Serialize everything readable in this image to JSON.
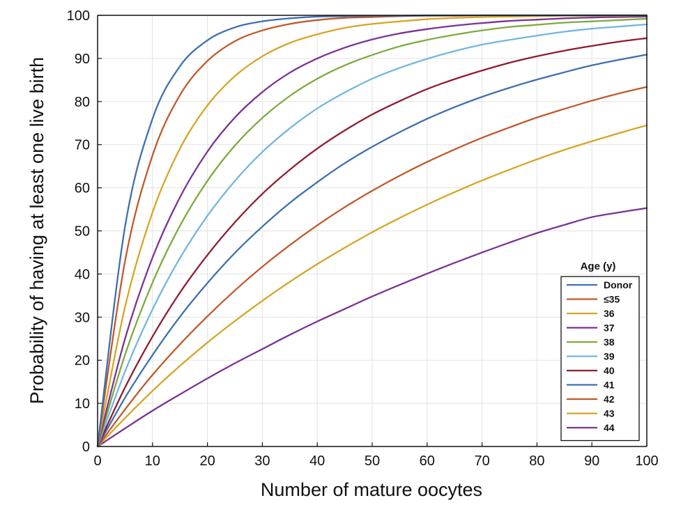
{
  "chart_data": {
    "type": "line",
    "title": "",
    "xlabel": "Number of mature oocytes",
    "ylabel": "Probability of having at least one live birth",
    "xlim": [
      0,
      100
    ],
    "ylim": [
      0,
      100
    ],
    "xticks": [
      0,
      10,
      20,
      30,
      40,
      50,
      60,
      70,
      80,
      90,
      100
    ],
    "yticks": [
      0,
      10,
      20,
      30,
      40,
      50,
      60,
      70,
      80,
      90,
      100
    ],
    "grid": true,
    "legend": {
      "title": "Age (y)",
      "placement": "bottom-right"
    },
    "x": [
      0,
      5,
      10,
      15,
      20,
      25,
      30,
      35,
      40,
      45,
      50,
      55,
      60,
      65,
      70,
      75,
      80,
      85,
      90,
      95,
      100
    ],
    "series": [
      {
        "name": "Donor",
        "color": "#3d6fb0",
        "values": [
          0,
          51.0,
          76.0,
          88.2,
          94.2,
          97.2,
          98.6,
          99.3,
          99.7,
          99.8,
          99.9,
          99.9,
          100,
          100,
          100,
          100,
          100,
          100,
          100,
          100,
          100
        ]
      },
      {
        "name": "≤35",
        "color": "#c1592a",
        "values": [
          0,
          43.0,
          67.5,
          81.5,
          89.4,
          94.0,
          96.5,
          98.0,
          98.9,
          99.4,
          99.6,
          99.8,
          99.9,
          99.9,
          100,
          100,
          100,
          100,
          100,
          100,
          100
        ]
      },
      {
        "name": "36",
        "color": "#d6a526",
        "values": [
          0,
          32.4,
          54.3,
          69.1,
          79.1,
          85.9,
          90.5,
          93.6,
          95.6,
          97.1,
          98.0,
          98.6,
          99.1,
          99.4,
          99.6,
          99.7,
          99.8,
          99.9,
          99.9,
          99.9,
          100
        ]
      },
      {
        "name": "37",
        "color": "#7b3294",
        "values": [
          0,
          25.0,
          43.8,
          57.8,
          68.4,
          76.3,
          82.2,
          86.7,
          90.0,
          92.5,
          94.4,
          95.8,
          96.8,
          97.6,
          98.2,
          98.7,
          99.0,
          99.3,
          99.5,
          99.6,
          99.7
        ]
      },
      {
        "name": "38",
        "color": "#7daa3d",
        "values": [
          0,
          21.3,
          38.0,
          51.2,
          61.6,
          69.8,
          76.2,
          81.3,
          85.3,
          88.4,
          90.8,
          92.8,
          94.3,
          95.5,
          96.5,
          97.3,
          97.8,
          98.3,
          98.6,
          98.9,
          99.2
        ]
      },
      {
        "name": "39",
        "color": "#72b6e0",
        "values": [
          0,
          17.4,
          31.8,
          43.7,
          53.5,
          61.6,
          68.3,
          73.8,
          78.4,
          82.1,
          85.3,
          87.8,
          89.9,
          91.7,
          93.2,
          94.3,
          95.3,
          96.2,
          96.9,
          97.4,
          97.9
        ]
      },
      {
        "name": "40",
        "color": "#8f1c2f",
        "values": [
          0,
          13.7,
          25.5,
          35.7,
          44.4,
          52.0,
          58.6,
          64.2,
          69.1,
          73.3,
          77.0,
          80.1,
          82.9,
          85.2,
          87.2,
          89.0,
          90.5,
          91.8,
          92.9,
          93.9,
          94.7
        ]
      },
      {
        "name": "41",
        "color": "#3d6fb0",
        "values": [
          0,
          11.3,
          21.2,
          30.1,
          37.9,
          44.9,
          51.0,
          56.5,
          61.3,
          65.7,
          69.5,
          72.9,
          76.0,
          78.7,
          81.1,
          83.2,
          85.1,
          86.8,
          88.4,
          89.7,
          90.9
        ]
      },
      {
        "name": "42",
        "color": "#c1592a",
        "values": [
          0,
          8.6,
          16.6,
          23.7,
          30.2,
          36.2,
          41.7,
          46.7,
          51.3,
          55.5,
          59.3,
          62.8,
          66.0,
          68.9,
          71.6,
          74.0,
          76.3,
          78.3,
          80.2,
          81.9,
          83.4
        ]
      },
      {
        "name": "43",
        "color": "#d6a526",
        "values": [
          0,
          6.6,
          12.9,
          18.7,
          24.1,
          29.1,
          33.8,
          38.2,
          42.3,
          46.1,
          49.7,
          53.0,
          56.1,
          59.0,
          61.7,
          64.2,
          66.6,
          68.8,
          70.8,
          72.7,
          74.5
        ]
      },
      {
        "name": "44",
        "color": "#7b3294",
        "values": [
          0,
          4.2,
          8.3,
          12.1,
          15.8,
          19.3,
          22.6,
          25.9,
          29.0,
          31.9,
          34.8,
          37.5,
          40.1,
          42.6,
          45.0,
          47.3,
          49.5,
          51.4,
          53.2,
          54.3,
          55.3
        ]
      }
    ]
  }
}
